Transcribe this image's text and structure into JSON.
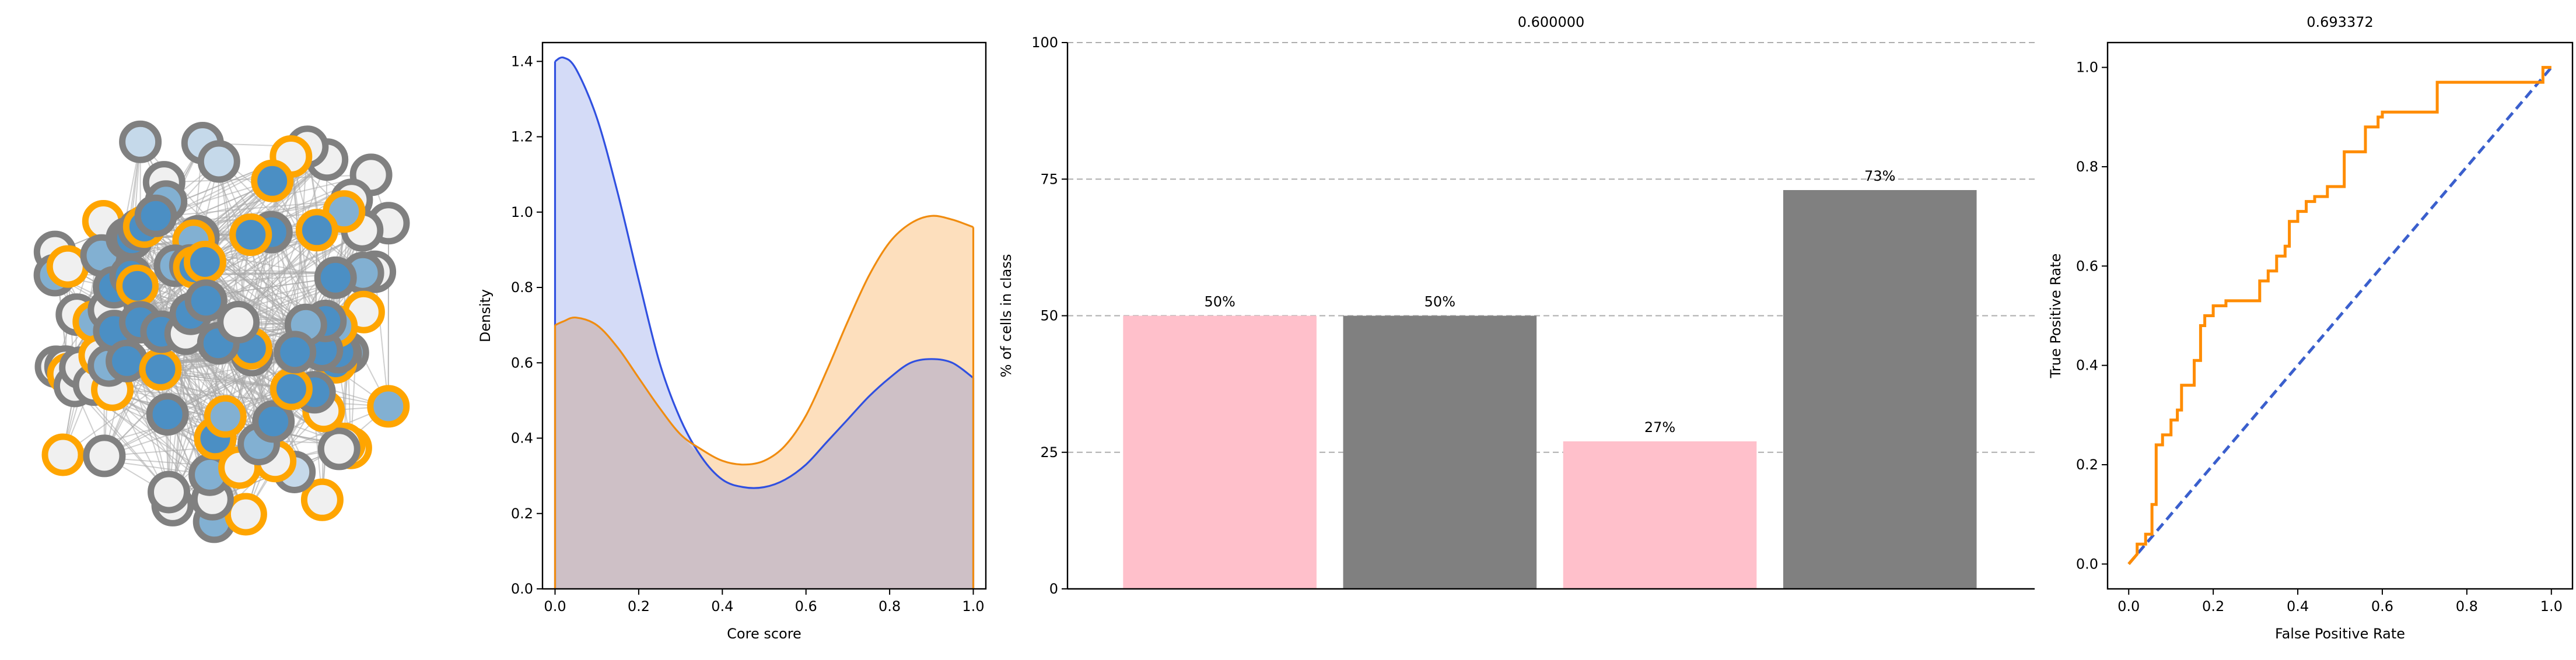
{
  "colors": {
    "gray_node": "#808080",
    "orange_node": "#ffa500",
    "fill_empty": "#f0f0f0",
    "fill_light": "#82b0d2",
    "fill_mid": "#4b8fc4",
    "fill_pale": "#c5d9ea",
    "edge": "#a9a9a9",
    "density_blue_line": "#3050e0",
    "density_blue_fill": "#c5cff4",
    "density_orange_line": "#f08c10",
    "density_orange_fill": "#fdd9b1",
    "density_overlap": "#cec0c6",
    "bar_pink": "#ffc0cb",
    "bar_gray": "#808080",
    "roc_orange": "#ff8c00",
    "roc_blue": "#3a5fcd",
    "grid": "#a0a0a0"
  },
  "chart_data": [
    {
      "type": "network",
      "node_count": 96
    },
    {
      "type": "area",
      "title": "",
      "xlabel": "Core score",
      "ylabel": "Density",
      "xlim": [
        -0.03,
        1.03
      ],
      "ylim": [
        0,
        1.45
      ],
      "x_ticks": [
        "0.0",
        "0.2",
        "0.4",
        "0.6",
        "0.8",
        "1.0"
      ],
      "y_ticks": [
        "0.0",
        "0.2",
        "0.4",
        "0.6",
        "0.8",
        "1.0",
        "1.2",
        "1.4"
      ],
      "series": [
        {
          "color_key": "blue",
          "x": [
            0,
            0.02,
            0.05,
            0.1,
            0.15,
            0.2,
            0.25,
            0.3,
            0.35,
            0.4,
            0.45,
            0.5,
            0.55,
            0.6,
            0.65,
            0.7,
            0.75,
            0.8,
            0.85,
            0.9,
            0.95,
            1.0
          ],
          "y": [
            1.4,
            1.41,
            1.38,
            1.25,
            1.05,
            0.82,
            0.6,
            0.45,
            0.35,
            0.29,
            0.27,
            0.27,
            0.29,
            0.33,
            0.39,
            0.45,
            0.51,
            0.56,
            0.6,
            0.61,
            0.6,
            0.56
          ]
        },
        {
          "color_key": "orange",
          "x": [
            0,
            0.02,
            0.05,
            0.1,
            0.15,
            0.2,
            0.25,
            0.3,
            0.35,
            0.4,
            0.45,
            0.5,
            0.55,
            0.6,
            0.65,
            0.7,
            0.75,
            0.8,
            0.85,
            0.9,
            0.95,
            1.0
          ],
          "y": [
            0.7,
            0.71,
            0.72,
            0.7,
            0.64,
            0.56,
            0.48,
            0.41,
            0.37,
            0.34,
            0.33,
            0.34,
            0.38,
            0.46,
            0.58,
            0.71,
            0.83,
            0.92,
            0.97,
            0.99,
            0.98,
            0.96
          ]
        }
      ]
    },
    {
      "type": "bar",
      "title": "0.600000",
      "xlabel": "",
      "ylabel": "% of cells in class",
      "ylim": [
        0,
        100
      ],
      "y_ticks": [
        "0",
        "25",
        "50",
        "75",
        "100"
      ],
      "values": [
        50,
        50,
        27,
        73
      ],
      "labels": [
        "50%",
        "50%",
        "27%",
        "73%"
      ],
      "bar_colors": [
        "pink",
        "gray",
        "pink",
        "gray"
      ]
    },
    {
      "type": "line",
      "title": "0.693372",
      "xlabel": "False Positive Rate",
      "ylabel": "True Positive Rate",
      "xlim": [
        -0.05,
        1.05
      ],
      "ylim": [
        -0.05,
        1.05
      ],
      "x_ticks": [
        "0.0",
        "0.2",
        "0.4",
        "0.6",
        "0.8",
        "1.0"
      ],
      "y_ticks": [
        "0.0",
        "0.2",
        "0.4",
        "0.6",
        "0.8",
        "1.0"
      ],
      "roc": [
        [
          0,
          0
        ],
        [
          0.02,
          0.02
        ],
        [
          0.02,
          0.04
        ],
        [
          0.04,
          0.04
        ],
        [
          0.04,
          0.06
        ],
        [
          0.055,
          0.06
        ],
        [
          0.055,
          0.12
        ],
        [
          0.065,
          0.12
        ],
        [
          0.065,
          0.24
        ],
        [
          0.08,
          0.24
        ],
        [
          0.08,
          0.26
        ],
        [
          0.1,
          0.26
        ],
        [
          0.1,
          0.29
        ],
        [
          0.115,
          0.29
        ],
        [
          0.115,
          0.31
        ],
        [
          0.125,
          0.31
        ],
        [
          0.125,
          0.36
        ],
        [
          0.155,
          0.36
        ],
        [
          0.155,
          0.41
        ],
        [
          0.17,
          0.41
        ],
        [
          0.17,
          0.48
        ],
        [
          0.18,
          0.48
        ],
        [
          0.18,
          0.5
        ],
        [
          0.2,
          0.5
        ],
        [
          0.2,
          0.52
        ],
        [
          0.23,
          0.52
        ],
        [
          0.23,
          0.53
        ],
        [
          0.31,
          0.53
        ],
        [
          0.31,
          0.57
        ],
        [
          0.33,
          0.57
        ],
        [
          0.33,
          0.59
        ],
        [
          0.35,
          0.59
        ],
        [
          0.35,
          0.62
        ],
        [
          0.37,
          0.62
        ],
        [
          0.37,
          0.64
        ],
        [
          0.38,
          0.64
        ],
        [
          0.38,
          0.69
        ],
        [
          0.4,
          0.69
        ],
        [
          0.4,
          0.71
        ],
        [
          0.42,
          0.71
        ],
        [
          0.42,
          0.73
        ],
        [
          0.44,
          0.73
        ],
        [
          0.44,
          0.74
        ],
        [
          0.47,
          0.74
        ],
        [
          0.47,
          0.76
        ],
        [
          0.51,
          0.76
        ],
        [
          0.51,
          0.83
        ],
        [
          0.56,
          0.83
        ],
        [
          0.56,
          0.88
        ],
        [
          0.59,
          0.88
        ],
        [
          0.59,
          0.9
        ],
        [
          0.6,
          0.9
        ],
        [
          0.6,
          0.91
        ],
        [
          0.73,
          0.91
        ],
        [
          0.73,
          0.97
        ],
        [
          0.98,
          0.97
        ],
        [
          0.98,
          1.0
        ],
        [
          1.0,
          1.0
        ]
      ],
      "diagonal": [
        [
          0,
          0
        ],
        [
          1,
          1
        ]
      ]
    }
  ]
}
